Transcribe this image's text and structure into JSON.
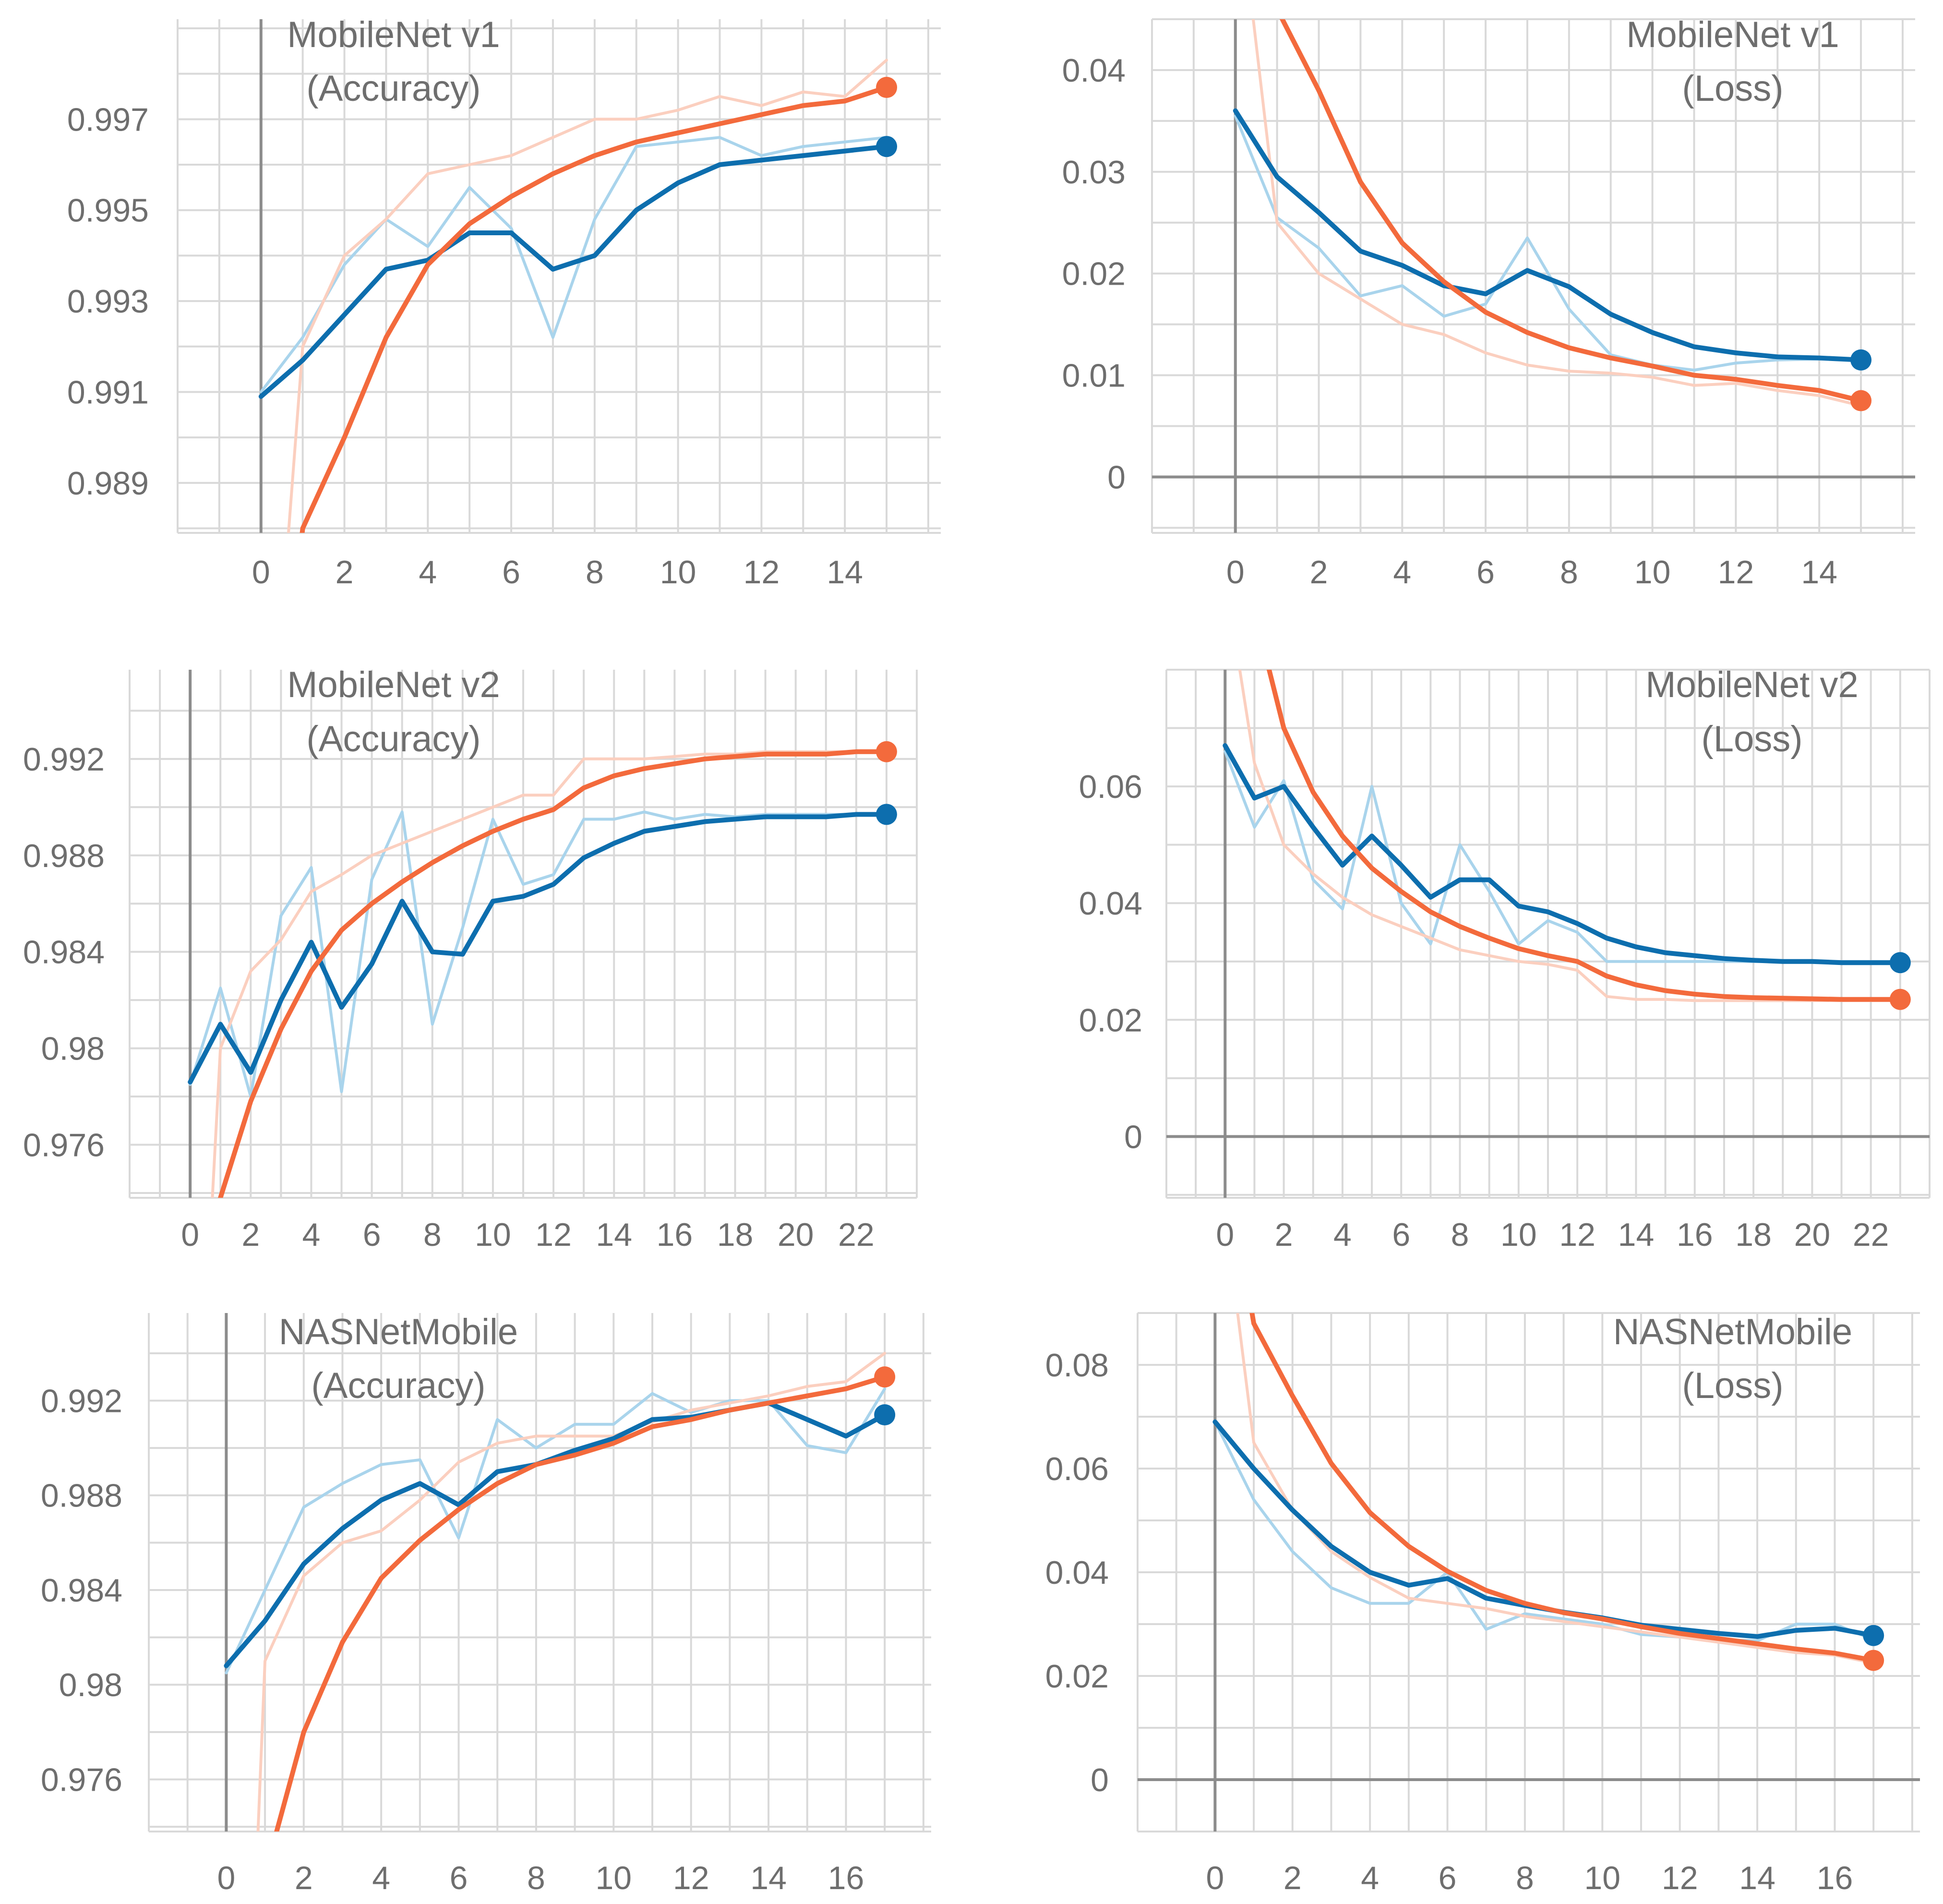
{
  "colors": {
    "blue": "#0d6eae",
    "blue_raw": "#a9d4ec",
    "orange": "#f36a3c",
    "orange_raw": "#fbcfbf",
    "grid": "#d9d9d9",
    "zero_axis": "#8c8c8c",
    "text": "#6e6e6e"
  },
  "chart_data": [
    {
      "id": "mnv1-acc",
      "type": "line",
      "title_line1": "MobileNet v1",
      "title_line2": "(Accuracy)",
      "x_ticks": [
        0,
        2,
        4,
        6,
        8,
        10,
        12,
        14
      ],
      "x_tick_labels": [
        "0",
        "2",
        "4",
        "6",
        "8",
        "10",
        "12",
        "14"
      ],
      "y_ticks": [
        0.989,
        0.991,
        0.993,
        0.995,
        0.997
      ],
      "y_tick_labels": [
        "0.989",
        "0.991",
        "0.993",
        "0.995",
        "0.997"
      ],
      "xlim": [
        -2,
        16.3
      ],
      "ylim": [
        0.9879,
        0.9992
      ],
      "series": [
        {
          "name": "blue",
          "x": [
            0,
            1,
            2,
            3,
            4,
            5,
            6,
            7,
            8,
            9,
            10,
            11,
            12,
            13,
            14,
            15
          ],
          "raw": [
            0.991,
            0.9922,
            0.9938,
            0.9948,
            0.9942,
            0.9955,
            0.9946,
            0.9922,
            0.9948,
            0.9964,
            0.9965,
            0.9966,
            0.9962,
            0.9964,
            0.9965,
            0.9966
          ],
          "smoothed": [
            0.9909,
            0.9917,
            0.9927,
            0.9937,
            0.9939,
            0.9945,
            0.9945,
            0.9937,
            0.994,
            0.995,
            0.9956,
            0.996,
            0.9961,
            0.9962,
            0.9963,
            0.9964
          ]
        },
        {
          "name": "orange",
          "x": [
            0,
            1,
            2,
            3,
            4,
            5,
            6,
            7,
            8,
            9,
            10,
            11,
            12,
            13,
            14,
            15
          ],
          "raw": [
            0.98,
            0.992,
            0.994,
            0.9948,
            0.9958,
            0.996,
            0.9962,
            0.9966,
            0.997,
            0.997,
            0.9972,
            0.9975,
            0.9973,
            0.9976,
            0.9975,
            0.9983
          ],
          "smoothed": [
            0.98,
            0.988,
            0.99,
            0.9922,
            0.9938,
            0.9947,
            0.9953,
            0.9958,
            0.9962,
            0.9965,
            0.9967,
            0.9969,
            0.9971,
            0.9973,
            0.9974,
            0.9977
          ]
        }
      ]
    },
    {
      "id": "mnv1-loss",
      "type": "line",
      "title_line1": "MobileNet v1",
      "title_line2": "(Loss)",
      "x_ticks": [
        0,
        2,
        4,
        6,
        8,
        10,
        12,
        14
      ],
      "x_tick_labels": [
        "0",
        "2",
        "4",
        "6",
        "8",
        "10",
        "12",
        "14"
      ],
      "y_ticks": [
        0,
        0.01,
        0.02,
        0.03,
        0.04
      ],
      "y_tick_labels": [
        "0",
        "0.01",
        "0.02",
        "0.03",
        "0.04"
      ],
      "xlim": [
        -2,
        16.3
      ],
      "ylim": [
        -0.0055,
        0.045
      ],
      "series": [
        {
          "name": "blue",
          "x": [
            0,
            1,
            2,
            3,
            4,
            5,
            6,
            7,
            8,
            9,
            10,
            11,
            12,
            13,
            14,
            15
          ],
          "raw": [
            0.0355,
            0.0255,
            0.0225,
            0.0178,
            0.0188,
            0.0158,
            0.017,
            0.0235,
            0.0165,
            0.012,
            0.011,
            0.0105,
            0.0112,
            0.0115,
            0.0116,
            0.0115
          ],
          "smoothed": [
            0.036,
            0.0295,
            0.026,
            0.0222,
            0.0208,
            0.0188,
            0.018,
            0.0203,
            0.0187,
            0.016,
            0.0142,
            0.0128,
            0.0122,
            0.0118,
            0.0117,
            0.0115
          ]
        },
        {
          "name": "orange",
          "x": [
            0.4,
            1,
            2,
            3,
            4,
            5,
            6,
            7,
            8,
            9,
            10,
            11,
            12,
            13,
            14,
            15
          ],
          "raw": [
            0.046,
            0.025,
            0.02,
            0.0175,
            0.015,
            0.014,
            0.0122,
            0.011,
            0.0104,
            0.0102,
            0.0098,
            0.009,
            0.0092,
            0.0085,
            0.008,
            0.007
          ],
          "smoothed": [
            0.07,
            0.046,
            0.038,
            0.029,
            0.023,
            0.0192,
            0.0162,
            0.0142,
            0.0127,
            0.0117,
            0.0109,
            0.01,
            0.0096,
            0.009,
            0.0085,
            0.0075
          ]
        }
      ]
    },
    {
      "id": "mnv2-acc",
      "type": "line",
      "title_line1": "MobileNet v2",
      "title_line2": "(Accuracy)",
      "x_ticks": [
        0,
        2,
        4,
        6,
        8,
        10,
        12,
        14,
        16,
        18,
        20,
        22
      ],
      "x_tick_labels": [
        "0",
        "2",
        "4",
        "6",
        "8",
        "10",
        "12",
        "14",
        "16",
        "18",
        "20",
        "22"
      ],
      "y_ticks": [
        0.976,
        0.98,
        0.984,
        0.988,
        0.992
      ],
      "y_tick_labels": [
        "0.976",
        "0.98",
        "0.984",
        "0.988",
        "0.992"
      ],
      "xlim": [
        -2,
        24
      ],
      "ylim": [
        0.9738,
        0.9957
      ],
      "series": [
        {
          "name": "blue",
          "x": [
            0,
            1,
            2,
            3,
            4,
            5,
            6,
            7,
            8,
            9,
            10,
            11,
            12,
            13,
            14,
            15,
            16,
            17,
            18,
            19,
            20,
            21,
            22,
            23
          ],
          "raw": [
            0.9785,
            0.9825,
            0.978,
            0.9855,
            0.9875,
            0.9782,
            0.987,
            0.9898,
            0.981,
            0.985,
            0.9895,
            0.9868,
            0.9872,
            0.9895,
            0.9895,
            0.9898,
            0.9895,
            0.9897,
            0.9896,
            0.9897,
            0.9897,
            0.9897,
            0.9897,
            0.9897
          ],
          "smoothed": [
            0.9786,
            0.981,
            0.979,
            0.982,
            0.9844,
            0.9817,
            0.9835,
            0.9861,
            0.984,
            0.9839,
            0.9861,
            0.9863,
            0.9868,
            0.9879,
            0.9885,
            0.989,
            0.9892,
            0.9894,
            0.9895,
            0.9896,
            0.9896,
            0.9896,
            0.9897,
            0.9897
          ]
        },
        {
          "name": "orange",
          "x": [
            0.7,
            1,
            2,
            3,
            4,
            5,
            6,
            7,
            8,
            9,
            10,
            11,
            12,
            13,
            14,
            15,
            16,
            17,
            18,
            19,
            20,
            21,
            22,
            23
          ],
          "raw": [
            0.973,
            0.98,
            0.9832,
            0.9845,
            0.9865,
            0.9872,
            0.988,
            0.9885,
            0.989,
            0.9895,
            0.99,
            0.9905,
            0.9905,
            0.992,
            0.992,
            0.992,
            0.9921,
            0.9922,
            0.9922,
            0.9923,
            0.9923,
            0.9923,
            0.9923,
            0.9923
          ],
          "smoothed": [
            0.97,
            0.9738,
            0.9778,
            0.9808,
            0.9832,
            0.9849,
            0.986,
            0.9869,
            0.9877,
            0.9884,
            0.989,
            0.9895,
            0.9899,
            0.9908,
            0.9913,
            0.9916,
            0.9918,
            0.992,
            0.9921,
            0.9922,
            0.9922,
            0.9922,
            0.9923,
            0.9923
          ]
        }
      ]
    },
    {
      "id": "mnv2-loss",
      "type": "line",
      "title_line1": "MobileNet v2",
      "title_line2": "(Loss)",
      "x_ticks": [
        0,
        2,
        4,
        6,
        8,
        10,
        12,
        14,
        16,
        18,
        20,
        22
      ],
      "x_tick_labels": [
        "0",
        "2",
        "4",
        "6",
        "8",
        "10",
        "12",
        "14",
        "16",
        "18",
        "20",
        "22"
      ],
      "y_ticks": [
        0,
        0.02,
        0.04,
        0.06
      ],
      "y_tick_labels": [
        "0",
        "0.02",
        "0.04",
        "0.06"
      ],
      "xlim": [
        -2,
        24
      ],
      "ylim": [
        -0.0105,
        0.08
      ],
      "series": [
        {
          "name": "blue",
          "x": [
            0,
            1,
            2,
            3,
            4,
            5,
            6,
            7,
            8,
            9,
            10,
            11,
            12,
            13,
            14,
            15,
            16,
            17,
            18,
            19,
            20,
            21,
            22,
            23
          ],
          "raw": [
            0.066,
            0.053,
            0.061,
            0.044,
            0.039,
            0.06,
            0.04,
            0.033,
            0.05,
            0.042,
            0.033,
            0.037,
            0.035,
            0.03,
            0.03,
            0.03,
            0.03,
            0.03,
            0.03,
            0.03,
            0.03,
            0.03,
            0.03,
            0.03
          ],
          "smoothed": [
            0.067,
            0.058,
            0.06,
            0.053,
            0.0465,
            0.0515,
            0.0465,
            0.041,
            0.044,
            0.044,
            0.0395,
            0.0385,
            0.0365,
            0.034,
            0.0325,
            0.0315,
            0.031,
            0.0305,
            0.0302,
            0.03,
            0.03,
            0.0298,
            0.0298,
            0.0298
          ]
        },
        {
          "name": "orange",
          "x": [
            0.5,
            1,
            2,
            3,
            4,
            5,
            6,
            7,
            8,
            9,
            10,
            11,
            12,
            13,
            14,
            15,
            16,
            17,
            18,
            19,
            20,
            21,
            22,
            23
          ],
          "raw": [
            0.08,
            0.064,
            0.05,
            0.045,
            0.041,
            0.038,
            0.036,
            0.034,
            0.032,
            0.031,
            0.03,
            0.0295,
            0.0285,
            0.024,
            0.0235,
            0.0235,
            0.0233,
            0.0233,
            0.0233,
            0.0233,
            0.0233,
            0.0233,
            0.0233,
            0.0233
          ],
          "smoothed": [
            0.11,
            0.09,
            0.07,
            0.059,
            0.0515,
            0.046,
            0.042,
            0.0385,
            0.036,
            0.034,
            0.0322,
            0.031,
            0.03,
            0.0275,
            0.026,
            0.025,
            0.0244,
            0.024,
            0.0238,
            0.0237,
            0.0236,
            0.0235,
            0.0235,
            0.0235
          ]
        }
      ]
    },
    {
      "id": "nas-acc",
      "type": "line",
      "title_line1": "NASNetMobile",
      "title_line2": "(Accuracy)",
      "x_ticks": [
        0,
        2,
        4,
        6,
        8,
        10,
        12,
        14,
        16
      ],
      "x_tick_labels": [
        "0",
        "2",
        "4",
        "6",
        "8",
        "10",
        "12",
        "14",
        "16"
      ],
      "y_ticks": [
        0.976,
        0.98,
        0.984,
        0.988,
        0.992
      ],
      "y_tick_labels": [
        "0.976",
        "0.98",
        "0.984",
        "0.988",
        "0.992"
      ],
      "xlim": [
        -2,
        18.2
      ],
      "ylim": [
        0.9738,
        0.9957
      ],
      "series": [
        {
          "name": "blue",
          "x": [
            0,
            1,
            2,
            3,
            4,
            5,
            6,
            7,
            8,
            9,
            10,
            11,
            12,
            13,
            14,
            15,
            16,
            17
          ],
          "raw": [
            0.9805,
            0.984,
            0.9875,
            0.9885,
            0.9893,
            0.9895,
            0.9862,
            0.9912,
            0.99,
            0.991,
            0.991,
            0.9923,
            0.9915,
            0.992,
            0.992,
            0.9901,
            0.9898,
            0.9925
          ],
          "smoothed": [
            0.9808,
            0.9827,
            0.9851,
            0.9866,
            0.9878,
            0.9885,
            0.9876,
            0.989,
            0.9893,
            0.9899,
            0.9904,
            0.9912,
            0.9913,
            0.9916,
            0.9919,
            0.9912,
            0.9905,
            0.9914
          ]
        },
        {
          "name": "orange",
          "x": [
            0.8,
            1,
            2,
            3,
            4,
            5,
            6,
            7,
            8,
            9,
            10,
            11,
            12,
            13,
            14,
            15,
            16,
            17
          ],
          "raw": [
            0.973,
            0.981,
            0.9846,
            0.986,
            0.9865,
            0.9878,
            0.9894,
            0.9902,
            0.9905,
            0.9905,
            0.9905,
            0.9911,
            0.9916,
            0.9919,
            0.9922,
            0.9926,
            0.9928,
            0.994
          ],
          "smoothed": [
            0.968,
            0.972,
            0.978,
            0.9818,
            0.9845,
            0.9861,
            0.9874,
            0.9885,
            0.9893,
            0.9897,
            0.9902,
            0.9909,
            0.9912,
            0.9916,
            0.9919,
            0.9922,
            0.9925,
            0.993
          ]
        }
      ]
    },
    {
      "id": "nas-loss",
      "type": "line",
      "title_line1": "NASNetMobile",
      "title_line2": "(Loss)",
      "x_ticks": [
        0,
        2,
        4,
        6,
        8,
        10,
        12,
        14,
        16
      ],
      "x_tick_labels": [
        "0",
        "2",
        "4",
        "6",
        "8",
        "10",
        "12",
        "14",
        "16"
      ],
      "y_ticks": [
        0,
        0.02,
        0.04,
        0.06,
        0.08
      ],
      "y_tick_labels": [
        "0",
        "0.02",
        "0.04",
        "0.06",
        "0.08"
      ],
      "xlim": [
        -2,
        18.2
      ],
      "ylim": [
        -0.01,
        0.09
      ],
      "series": [
        {
          "name": "blue",
          "x": [
            0,
            1,
            2,
            3,
            4,
            5,
            6,
            7,
            8,
            9,
            10,
            11,
            12,
            13,
            14,
            15,
            16,
            17
          ],
          "raw": [
            0.069,
            0.054,
            0.044,
            0.037,
            0.034,
            0.034,
            0.04,
            0.029,
            0.032,
            0.031,
            0.03,
            0.028,
            0.0275,
            0.027,
            0.0268,
            0.03,
            0.03,
            0.027
          ],
          "smoothed": [
            0.069,
            0.06,
            0.052,
            0.045,
            0.04,
            0.0375,
            0.0388,
            0.035,
            0.0336,
            0.0323,
            0.0312,
            0.0298,
            0.029,
            0.0282,
            0.0276,
            0.0288,
            0.0292,
            0.0278
          ]
        },
        {
          "name": "orange",
          "x": [
            0.5,
            1,
            2,
            3,
            4,
            5,
            6,
            7,
            8,
            9,
            10,
            11,
            12,
            13,
            14,
            15,
            16,
            17
          ],
          "raw": [
            0.095,
            0.065,
            0.052,
            0.044,
            0.039,
            0.035,
            0.034,
            0.033,
            0.0315,
            0.0305,
            0.0295,
            0.0285,
            0.0275,
            0.0265,
            0.0255,
            0.0245,
            0.024,
            0.0225
          ],
          "smoothed": [
            0.11,
            0.088,
            0.074,
            0.061,
            0.0515,
            0.045,
            0.0402,
            0.0365,
            0.034,
            0.0322,
            0.031,
            0.0295,
            0.0282,
            0.0272,
            0.0262,
            0.0252,
            0.0244,
            0.023
          ]
        }
      ]
    }
  ]
}
